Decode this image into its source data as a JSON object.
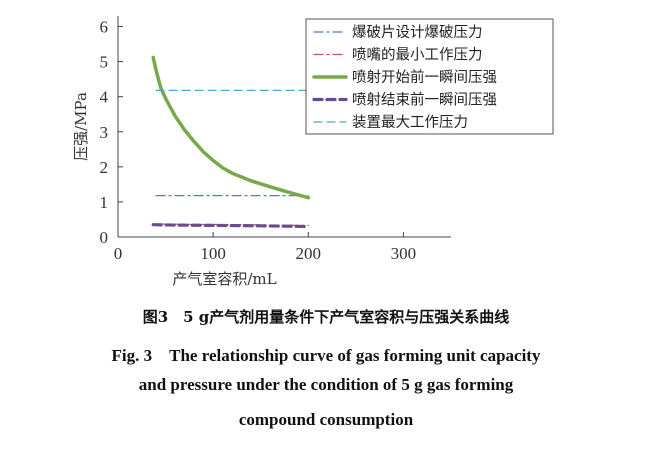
{
  "chart_data": {
    "type": "line",
    "xlabel": "产气室容积/mL",
    "ylabel": "压强/MPa",
    "xlim": [
      0,
      350
    ],
    "ylim": [
      0,
      6.3
    ],
    "xticks": [
      0,
      100,
      200,
      300
    ],
    "yticks": [
      0,
      1,
      2,
      3,
      4,
      5,
      6
    ],
    "legend_position": "top-right",
    "grid": false,
    "series": [
      {
        "name": "爆破片设计爆破压力",
        "style": "dashdot",
        "color": "#4a80c0",
        "width": 1.2,
        "x": [
          40,
          200
        ],
        "y": [
          1.18,
          1.18
        ]
      },
      {
        "name": "喷嘴的最小工作压力",
        "style": "dashdot",
        "color": "#c0504d",
        "width": 1.2,
        "x": [
          40,
          200
        ],
        "y": [
          0.37,
          0.33
        ]
      },
      {
        "name": "喷射开始前一瞬间压强",
        "style": "solid",
        "color": "#77a94a",
        "width": 3.5,
        "x": [
          37,
          40,
          45,
          50,
          60,
          70,
          80,
          90,
          100,
          110,
          120,
          140,
          160,
          180,
          200
        ],
        "y": [
          5.12,
          4.75,
          4.25,
          3.95,
          3.45,
          3.05,
          2.72,
          2.42,
          2.18,
          1.97,
          1.82,
          1.6,
          1.43,
          1.27,
          1.12
        ]
      },
      {
        "name": "喷射结束前一瞬间压强",
        "style": "dashed",
        "color": "#6a4c93",
        "width": 3.2,
        "x": [
          37,
          60,
          100,
          150,
          200
        ],
        "y": [
          0.35,
          0.34,
          0.33,
          0.32,
          0.3
        ]
      },
      {
        "name": "装置最大工作压力",
        "style": "dashed",
        "color": "#4bacc6",
        "width": 1.2,
        "x": [
          40,
          200
        ],
        "y": [
          4.18,
          4.18
        ]
      }
    ]
  },
  "caption": {
    "cn": "图3　5 g产气剂用量条件下产气室容积与压强关系曲线",
    "en_line1": "Fig. 3　The relationship curve of gas forming unit capacity",
    "en_line2": "and pressure under the condition of 5 g gas forming",
    "en_line3": "compound consumption"
  }
}
